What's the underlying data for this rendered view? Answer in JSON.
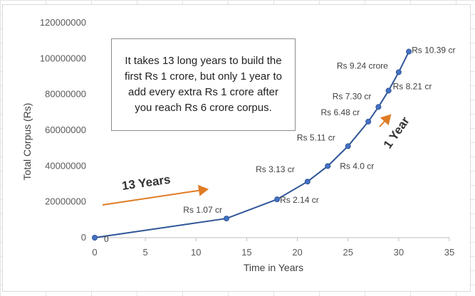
{
  "chart_data": {
    "type": "line",
    "xlabel": "Time in Years",
    "ylabel": "Total Corpus (Rs)",
    "xlim": [
      0,
      35
    ],
    "ylim": [
      0,
      120000000
    ],
    "xticks": [
      "0",
      "5",
      "10",
      "15",
      "20",
      "25",
      "30",
      "35"
    ],
    "yticks": [
      "0",
      "20000000",
      "40000000",
      "60000000",
      "80000000",
      "100000000",
      "120000000"
    ],
    "grid": false,
    "legend": "none",
    "line_color": "#2f5597",
    "marker_color": "#4472c4",
    "series": [
      {
        "x": [
          0,
          13,
          18,
          21,
          23,
          25,
          27,
          28,
          29,
          30,
          31
        ],
        "y": [
          0,
          10700000,
          21400000,
          31300000,
          40000000,
          51100000,
          64800000,
          73000000,
          82100000,
          92400000,
          103900000
        ],
        "labels": [
          "0",
          "Rs 1.07 cr",
          "Rs 2.14 cr",
          "Rs 3.13 cr",
          "Rs 4.0 cr",
          "Rs 5.11 cr",
          "Rs 6.48 cr",
          "Rs 7.30 cr",
          "Rs 8.21 cr",
          "Rs 9.24 crore",
          "Rs 10.39 cr"
        ]
      }
    ],
    "annotations": {
      "note": "It takes 13 long years to build the first Rs 1 crore, but only 1 year to add every extra Rs 1 crore after you reach Rs 6 crore corpus.",
      "arrow_left_label": "13 Years",
      "arrow_right_label": "1 Year",
      "arrow_color": "#e07b24"
    }
  }
}
